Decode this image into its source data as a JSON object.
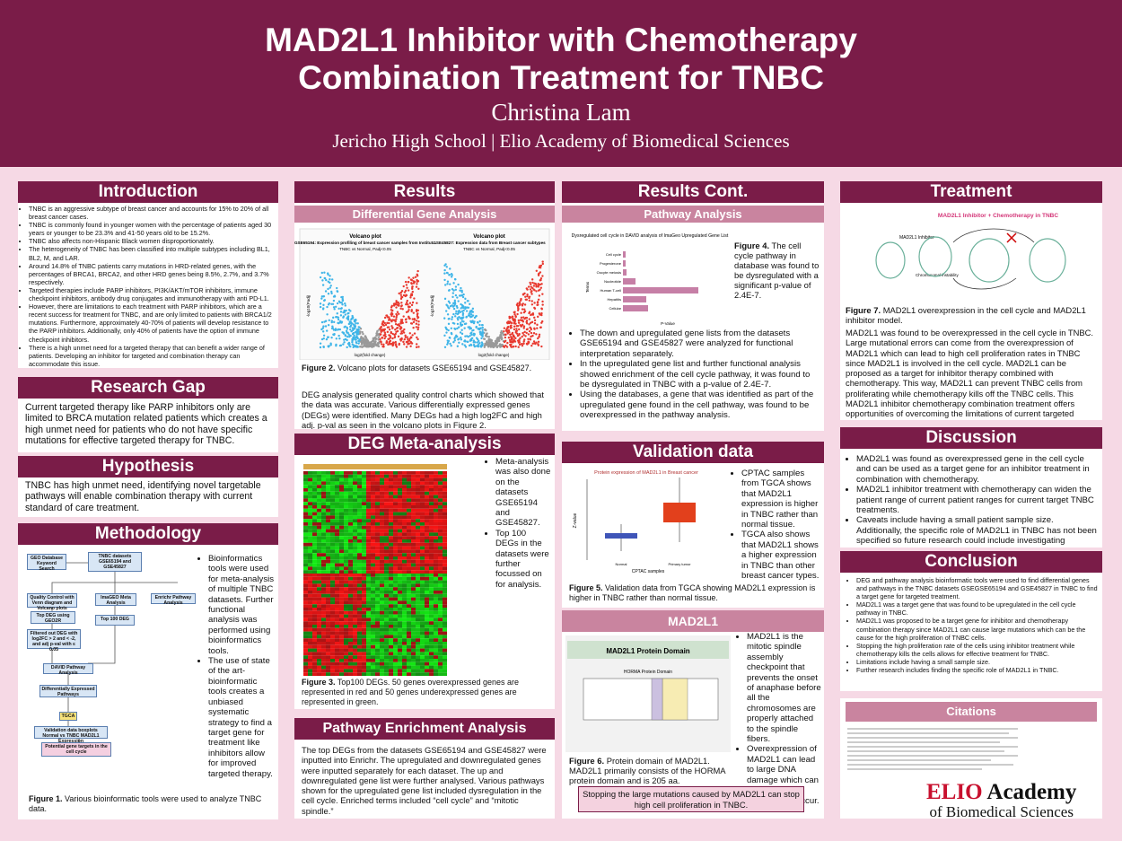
{
  "header": {
    "title_line1": "MAD2L1 Inhibitor with Chemotherapy",
    "title_line2": "Combination Treatment for TNBC",
    "author": "Christina Lam",
    "affiliation": "Jericho High School | Elio Academy of Biomedical Sciences"
  },
  "introduction": {
    "title": "Introduction",
    "bullets": [
      "TNBC is an aggressive subtype of breast cancer and accounts for 15% to 20% of all breast cancer cases.",
      "TNBC is commonly found in younger women with the percentage of patients aged 30 years or younger to be 23.3% and 41-50 years old to be 15.2%.",
      "TNBC also affects non-Hispanic Black women disproportionately.",
      "The heterogeneity of TNBC has been classified into multiple subtypes including BL1, BL2, M, and LAR.",
      "Around 14.8% of TNBC patients carry mutations in HRD-related genes, with the percentages of BRCA1, BRCA2, and other HRD genes being 8.5%, 2.7%, and 3.7% respectively.",
      "Targeted therapies include PARP inhibitors, PI3K/AKT/mTOR inhibitors, immune checkpoint inhibitors, antibody drug conjugates and immunotherapy with anti PD-L1.",
      "However, there are limitations to each treatment with PARP inhibitors, which are a recent success for treatment for TNBC, and are only limited to patients with BRCA1/2 mutations. Furthermore, approximately 40-70% of patients will develop resistance to the PARP inhibitors. Additionally, only 40% of patients have the option of immune checkpoint inhibitors.",
      "There is a high unmet need for a targeted therapy that can benefit a wider range of patients. Developing an inhibitor for targeted and combination therapy can accommodate this issue."
    ]
  },
  "research_gap": {
    "title": "Research Gap",
    "text": "Current targeted therapy like PARP inhibitors only are limited to BRCA mutation related patients which creates a high unmet need for patients who do not have specific mutations for effective targeted therapy for TNBC."
  },
  "hypothesis": {
    "title": "Hypothesis",
    "text": "TNBC has high unmet need, identifying novel targetable pathways will enable combination therapy with current standard of care treatment."
  },
  "methodology": {
    "title": "Methodology",
    "flowchart": [
      "GEO Database Keyword Search",
      "TNBC datasets GSE65194 and GSE45827",
      "Quality Control with Venn diagram and Volcano plots",
      "ImaGEO Meta Analysis",
      "Enrichr Pathway Analysis",
      "Top DEG using GEO2R",
      "Top 100 DEG",
      "Filtered out DEG with log2FC > 2 and < -2, and adj p-val with ≤ 0.05",
      "DAVID Pathway Analysis",
      "Differentially Expressed Pathways",
      "TGCA",
      "Validation data boxplots Normal vs TNBC MAD2L1 Expression",
      "Potential gene targets in the cell cycle"
    ],
    "bullets": [
      "Bioinformatics tools were used for meta-analysis of multiple TNBC datasets. Further functional analysis was performed using bioinformatics tools.",
      "The use of state of the art-bioinformatic tools creates a unbiased systematic strategy to find a target gene for treatment like inhibitors allow for improved targeted therapy."
    ],
    "caption_label": "Figure 1.",
    "caption": "Various bioinformatic tools were used to analyze TNBC data."
  },
  "results": {
    "title": "Results",
    "subtitle": "Differential Gene Analysis",
    "plots": [
      {
        "title": "Volcano plot",
        "name": "GSE65194: Expression profiling of breast cancer samples from Institut...",
        "subtitle": "TNBC vs Normal, Padj<0.05"
      },
      {
        "title": "Volcano plot",
        "name": "GSE45827: Expression data from Breast cancer subtypes",
        "subtitle": "TNBC vs Normal, Padj<0.05"
      }
    ],
    "x_label": "log2(fold change)",
    "y_label": "-log10(Padj)",
    "caption_label": "Figure 2.",
    "caption": "Volcano plots for datasets GSE65194 and GSE45827.",
    "text": "DEG analysis generated quality control charts which showed that the data was accurate. Various differentially expressed genes (DEGs) were identified. Many DEGs had a high log2FC and high adj. p-val as seen in the volcano plots in Figure 2."
  },
  "deg_meta": {
    "title": "DEG Meta-analysis",
    "bullets": [
      "Meta-analysis was also done on the datasets GSE65194 and GSE45827.",
      "Top 100 DEGs in the datasets were further focussed on for analysis."
    ],
    "caption_label": "Figure 3.",
    "caption": "Top100 DEGs. 50 genes overexpressed genes are represented in red and 50 genes underexpressed genes are represented in green."
  },
  "pathway_enrichment": {
    "title": "Pathway Enrichment Analysis",
    "text": "The top DEGs from the datasets GSE65194 and GSE45827 were inputted into Enrichr. The upregulated and downregulated genes were inputted separately for each dataset. The up and downregulated gene list were further analysed. Various pathways shown for the upregulated gene list included dysregulation in the cell cycle. Enriched terms included “cell cycle” and “mitotic spindle.”"
  },
  "results_cont": {
    "title": "Results Cont.",
    "subtitle": "Pathway Analysis",
    "chart_title": "Dysregulated cell cycle in DAVID analysis of ImaGeo Upregulated Gene List",
    "y_label": "Terms",
    "x_label": "P-Value",
    "terms": [
      "Cell cycle",
      "Progesterone",
      "Oocyte meiosis",
      "Nucleotide",
      "Human T-cell",
      "Hepatitis",
      "Cellular"
    ],
    "caption_label": "Figure 4.",
    "caption": "The cell cycle pathway in database was found to be dysregulated with a significant p-value of 2.4E-7.",
    "bullets": [
      "The down and upregulated gene lists from the datasets GSE65194 and GSE45827 were analyzed for functional interpretation separately.",
      "In the upregulated gene list and further functional analysis showed enrichment of the cell cycle pathway, it was found to be dysregulated in TNBC with a p-value of 2.4E-7.",
      "Using the databases, a gene that was identified as part of the upregulated gene found in the cell pathway, was found to be overexpressed in the pathway analysis."
    ]
  },
  "validation": {
    "title": "Validation data",
    "chart_title": "Protein expression of MAD2L1 in Breast cancer",
    "y_label": "Z-value",
    "x_label": "CPTAC samples",
    "groups": [
      "Normal",
      "Primary tumor"
    ],
    "bullets": [
      "CPTAC samples from TGCA shows that MAD2L1 expression is higher in TNBC rather than normal tissue.",
      "TGCA also shows that MAD2L1 shows a higher expression in TNBC than other breast cancer types."
    ],
    "caption_label": "Figure 5.",
    "caption": "Validation data from TGCA showing MAD2L1 expression is higher in TNBC rather than normal tissue."
  },
  "mad2l1": {
    "title": "MAD2L1",
    "figure_title": "MAD2L1 Protein Domain",
    "domain_label": "HORMA Protein Domain",
    "bullets": [
      "MAD2L1 is the mitotic spindle assembly checkpoint that prevents the onset of anaphase before all the chromosomes are properly attached to the spindle fibers.",
      "Overexpression of MAD2L1 can lead to large DNA damage which can cause more mutations to occur."
    ],
    "caption_label": "Figure 6.",
    "caption": "Protein domain of MAD2L1. MAD2L1 primarily consists of the HORMA protein domain and is 205 aa.",
    "note": "Stopping the large mutations caused by MAD2L1 can stop high cell proliferation in TNBC."
  },
  "treatment": {
    "title": "Treatment",
    "figure_title": "MAD2L1 Inhibitor + Chemotherapy in TNBC",
    "figure_label": "MAD2L1 Inhibitor",
    "figure_note": "Chromosomal instability",
    "caption_label": "Figure 7.",
    "caption": "MAD2L1 overexpression in the cell cycle and MAD2L1 inhibitor model.",
    "text": "MAD2L1 was found to be overexpressed in the cell cycle in TNBC. Large mutational errors can come from the overexpression of MAD2L1 which can lead to high cell proliferation rates in TNBC since MAD2L1 is involved in the cell cycle. MAD2L1 can be proposed as a target for inhibitor therapy combined with chemotherapy. This way, MAD2L1 can prevent TNBC cells from proliferating while chemotherapy kills off the TNBC cells. This MAD2L1 inhibitor chemotherapy combination treatment offers opportunities of overcoming the limitations of current targeted therapy by including a large patients range in for treatment."
  },
  "discussion": {
    "title": "Discussion",
    "bullets": [
      "MAD2L1 was found as overexpressed gene in the cell cycle and can be used as a target gene for an inhibitor treatment in combination with chemotherapy.",
      "MAD2L1 inhibitor treatment with chemotherapy can widen the patient range of current patient ranges for current target TNBC treatments.",
      "Caveats include having a small patient sample size. Additionally, the specific role of MAD2L1 in TNBC has not been specified so future research could include investigating MAD2L1’s role in TNBC."
    ]
  },
  "conclusion": {
    "title": "Conclusion",
    "bullets": [
      "DEG and pathway analysis bioinformatic tools were used to find differential genes and pathways in the TNBC datasets GSEGSE65194 and GSE45827 in TNBC to find a target gene for targeted treatment.",
      "MAD2L1 was a target gene that was found to be upregulated in the cell cycle pathway in TNBC.",
      "MAD2L1 was proposed to be a target gene for inhibitor and chemotherapy combination therapy since MAD2L1 can cause large mutations which can be the cause for the high proliferation of TNBC cells.",
      "Stopping the high proliferation rate of the cells using inhibitor treatment while chemotherapy kills the cells allows for effective treatment for TNBC.",
      "Limitations include having a small sample size.",
      "Further research includes finding the specific role of MAD2L1 in TNBC."
    ]
  },
  "citations": {
    "title": "Citations"
  },
  "logo": {
    "brand": "ELIO",
    "word": "Academy",
    "sub": "of Biomedical Sciences"
  }
}
